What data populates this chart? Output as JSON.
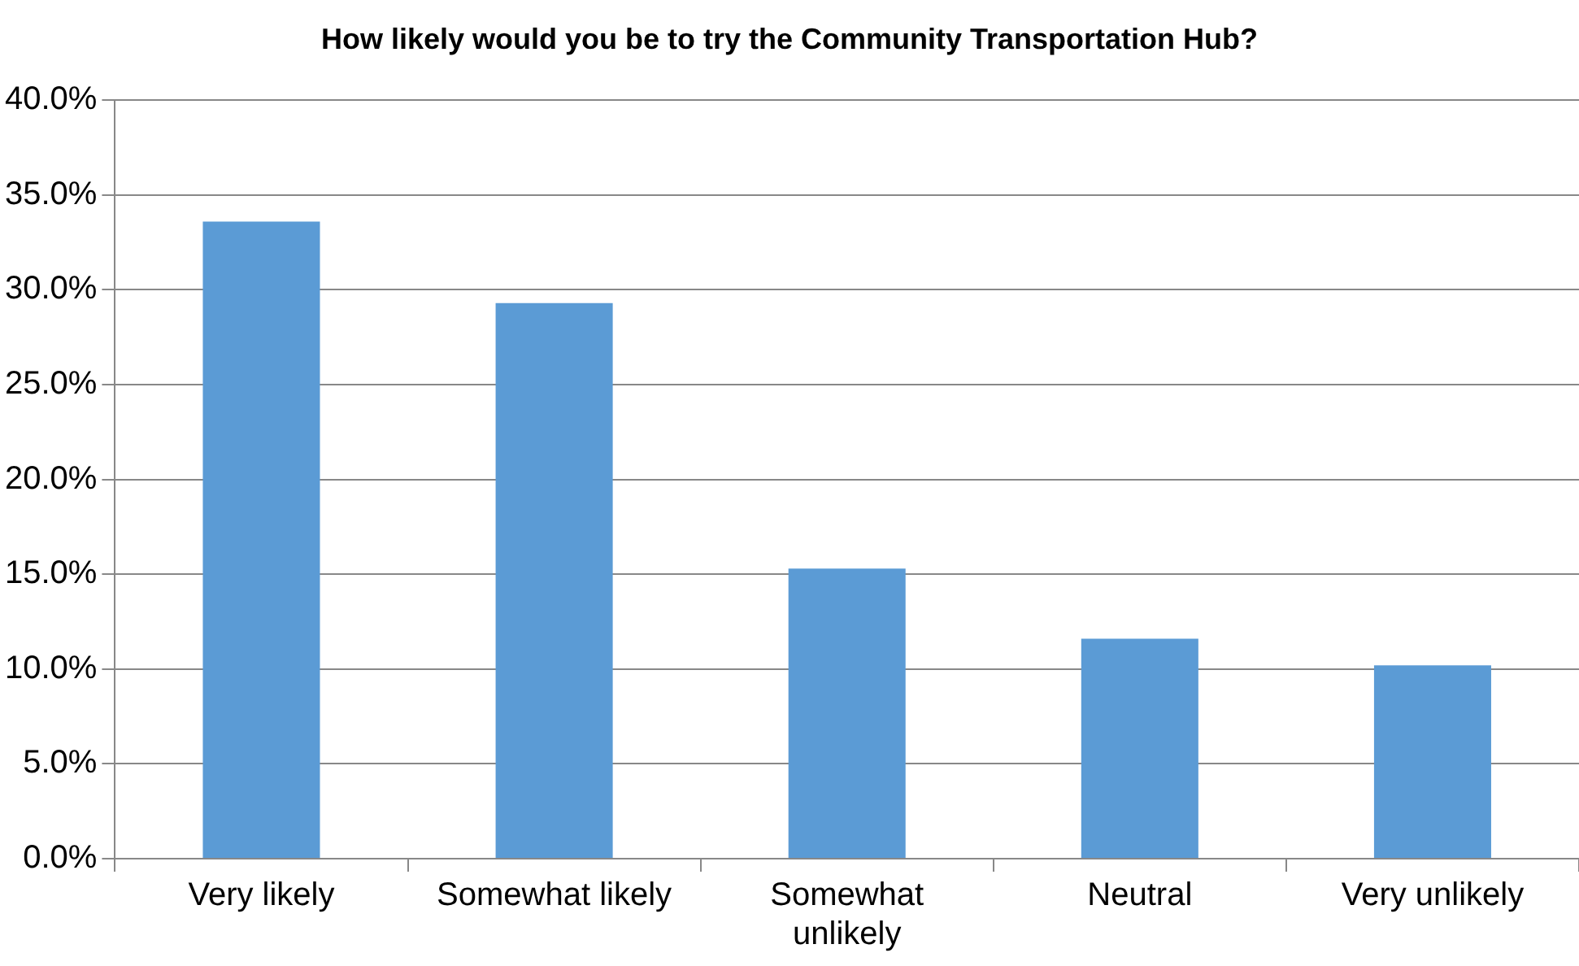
{
  "chart_data": {
    "type": "bar",
    "title": "How likely would you be to try the Community Transportation Hub?",
    "categories": [
      "Very likely",
      "Somewhat likely",
      "Somewhat unlikely",
      "Neutral",
      "Very unlikely"
    ],
    "values": [
      33.6,
      29.3,
      15.3,
      11.6,
      10.2
    ],
    "color": "#5b9bd5",
    "ylim": [
      0,
      40
    ],
    "yticks": [
      {
        "value": 0,
        "label": "0.0%"
      },
      {
        "value": 5,
        "label": "5.0%"
      },
      {
        "value": 10,
        "label": "10.0%"
      },
      {
        "value": 15,
        "label": "15.0%"
      },
      {
        "value": 20,
        "label": "20.0%"
      },
      {
        "value": 25,
        "label": "25.0%"
      },
      {
        "value": 30,
        "label": "30.0%"
      },
      {
        "value": 35,
        "label": "35.0%"
      },
      {
        "value": 40,
        "label": "40.0%"
      }
    ],
    "grid": "y",
    "legend": false
  }
}
